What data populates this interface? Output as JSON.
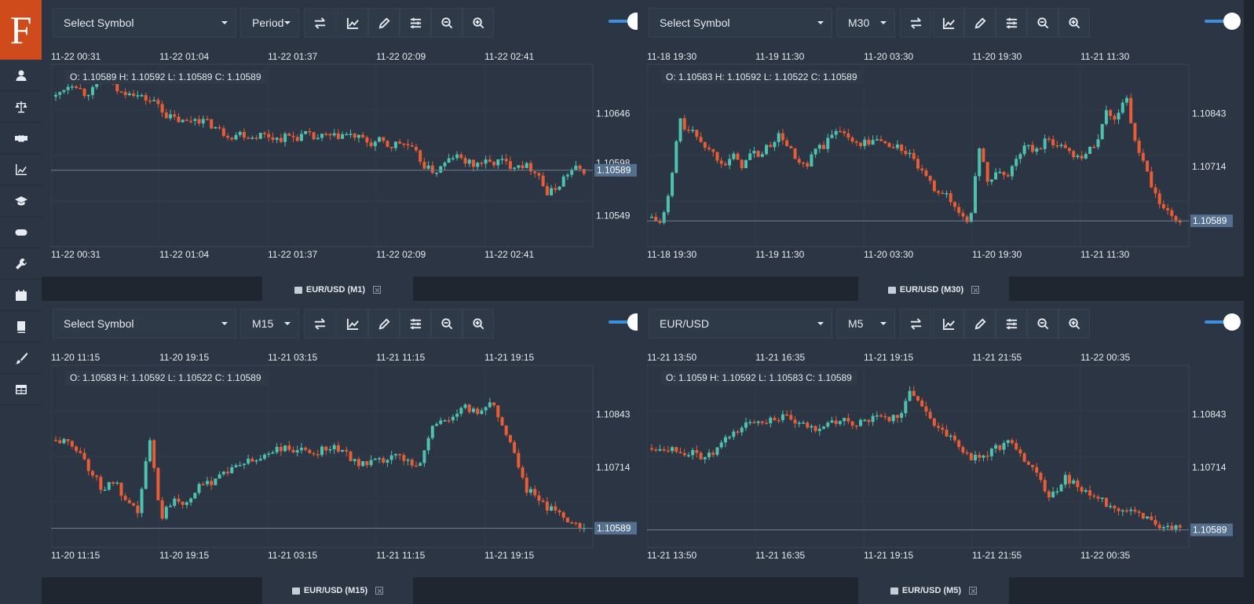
{
  "app": {
    "logo_letter": "F",
    "brand_color": "#cf4b1b",
    "accent_color": "#3d8fe0",
    "up_color": "#4fc1b0",
    "down_color": "#e85d35"
  },
  "sidebar": {
    "items": [
      {
        "icon": "user-icon"
      },
      {
        "icon": "scales-icon"
      },
      {
        "icon": "handshake-icon"
      },
      {
        "icon": "line-chart-icon"
      },
      {
        "icon": "graduation-cap-icon"
      },
      {
        "icon": "gamepad-icon"
      },
      {
        "icon": "wrench-icon"
      },
      {
        "icon": "calendar-icon"
      },
      {
        "icon": "book-icon"
      },
      {
        "icon": "paintbrush-icon"
      },
      {
        "icon": "table-icon"
      }
    ]
  },
  "panels": [
    {
      "symbol": "Select Symbol",
      "period": "Period",
      "ohlc": "O: 1.10589 H: 1.10592 L: 1.10589 C: 1.10589",
      "tab_label": "EUR/USD (M1)",
      "time_labels": [
        "11-22 00:31",
        "11-22 01:04",
        "11-22 01:37",
        "11-22 02:09",
        "11-22 02:41"
      ],
      "price_labels": [
        "1.10646",
        "1.10598",
        "1.10549"
      ],
      "last_price": "1.10589"
    },
    {
      "symbol": "Select Symbol",
      "period": "M30",
      "ohlc": "O: 1.10583 H: 1.10592 L: 1.10522 C: 1.10589",
      "tab_label": "EUR/USD (M30)",
      "time_labels": [
        "11-18 19:30",
        "11-19 11:30",
        "11-20 03:30",
        "11-20 19:30",
        "11-21 11:30"
      ],
      "price_labels": [
        "1.10843",
        "1.10714"
      ],
      "last_price": "1.10589"
    },
    {
      "symbol": "Select Symbol",
      "period": "M15",
      "ohlc": "O: 1.10583 H: 1.10592 L: 1.10522 C: 1.10589",
      "tab_label": "EUR/USD (M15)",
      "time_labels": [
        "11-20 11:15",
        "11-20 19:15",
        "11-21 03:15",
        "11-21 11:15",
        "11-21 19:15"
      ],
      "price_labels": [
        "1.10843",
        "1.10714"
      ],
      "last_price": "1.10589"
    },
    {
      "symbol": "EUR/USD",
      "period": "M5",
      "ohlc": "O: 1.1059 H: 1.10592 L: 1.10583 C: 1.10589",
      "tab_label": "EUR/USD (M5)",
      "time_labels": [
        "11-21 13:50",
        "11-21 16:35",
        "11-21 19:15",
        "11-21 21:55",
        "11-22 00:35"
      ],
      "price_labels": [
        "1.10843",
        "1.10714"
      ],
      "last_price": "1.10589"
    }
  ],
  "chart_paths": [
    [
      0.86,
      0.92,
      0.95,
      0.88,
      0.9,
      0.97,
      0.93,
      0.88,
      0.9,
      0.86,
      0.84,
      0.82,
      0.74,
      0.72,
      0.7,
      0.73,
      0.71,
      0.68,
      0.64,
      0.62,
      0.64,
      0.61,
      0.63,
      0.62,
      0.6,
      0.62,
      0.61,
      0.63,
      0.6,
      0.62,
      0.61,
      0.63,
      0.62,
      0.6,
      0.57,
      0.59,
      0.55,
      0.58,
      0.56,
      0.5,
      0.42,
      0.4,
      0.45,
      0.5,
      0.47,
      0.44,
      0.46,
      0.45,
      0.47,
      0.44,
      0.45,
      0.43,
      0.4,
      0.26,
      0.3,
      0.38,
      0.42,
      0.41
    ],
    [
      0.12,
      0.08,
      0.28,
      0.72,
      0.65,
      0.62,
      0.55,
      0.5,
      0.46,
      0.49,
      0.44,
      0.52,
      0.5,
      0.57,
      0.62,
      0.56,
      0.45,
      0.42,
      0.54,
      0.56,
      0.64,
      0.67,
      0.57,
      0.58,
      0.58,
      0.6,
      0.56,
      0.55,
      0.52,
      0.45,
      0.36,
      0.3,
      0.28,
      0.2,
      0.14,
      0.1,
      0.58,
      0.3,
      0.42,
      0.36,
      0.48,
      0.56,
      0.52,
      0.58,
      0.58,
      0.56,
      0.52,
      0.5,
      0.52,
      0.62,
      0.78,
      0.72,
      0.9,
      0.58,
      0.45,
      0.28,
      0.18,
      0.12,
      0.1
    ],
    [
      0.6,
      0.58,
      0.54,
      0.4,
      0.3,
      0.35,
      0.2,
      0.16,
      0.6,
      0.12,
      0.25,
      0.22,
      0.3,
      0.33,
      0.4,
      0.42,
      0.46,
      0.47,
      0.52,
      0.55,
      0.54,
      0.53,
      0.52,
      0.56,
      0.55,
      0.5,
      0.45,
      0.46,
      0.47,
      0.5,
      0.48,
      0.44,
      0.68,
      0.72,
      0.75,
      0.8,
      0.76,
      0.85,
      0.7,
      0.55,
      0.3,
      0.25,
      0.18,
      0.15,
      0.1,
      0.06
    ],
    [
      0.55,
      0.56,
      0.55,
      0.53,
      0.52,
      0.5,
      0.5,
      0.55,
      0.62,
      0.66,
      0.7,
      0.72,
      0.72,
      0.74,
      0.73,
      0.7,
      0.68,
      0.67,
      0.7,
      0.7,
      0.72,
      0.7,
      0.7,
      0.73,
      0.75,
      0.73,
      0.78,
      0.9,
      0.84,
      0.72,
      0.68,
      0.62,
      0.56,
      0.5,
      0.48,
      0.52,
      0.55,
      0.6,
      0.52,
      0.48,
      0.4,
      0.28,
      0.26,
      0.38,
      0.33,
      0.28,
      0.25,
      0.22,
      0.2,
      0.18,
      0.16,
      0.13,
      0.1,
      0.08,
      0.06,
      0.05
    ]
  ]
}
